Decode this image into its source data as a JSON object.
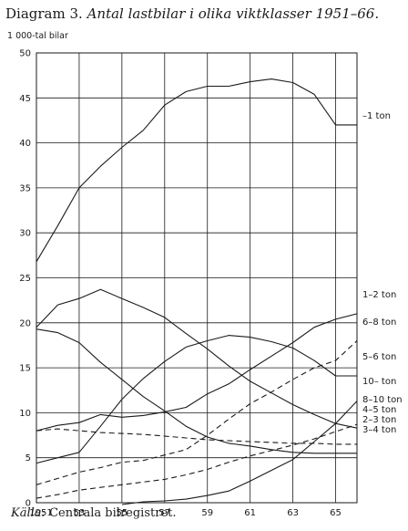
{
  "header": {
    "title_prefix": "Diagram 3.",
    "title_main": "Antal lastbilar i olika viktklasser 1951–66."
  },
  "footer": {
    "source_label": "Källa:",
    "source_text": "Centrala bilregistret."
  },
  "chart_data": {
    "type": "line",
    "title": "Diagram 3. Antal lastbilar i olika viktklasser 1951–66.",
    "ylabel": "1 000-tal bilar",
    "xlabel": "",
    "xlim": [
      1951,
      1966
    ],
    "ylim": [
      0,
      50
    ],
    "x_ticks": [
      1951,
      1953,
      1955,
      1957,
      1959,
      1961,
      1963,
      1965
    ],
    "x_tick_labels": [
      "1951",
      "53",
      "55",
      "57",
      "59",
      "61",
      "63",
      "65"
    ],
    "y_ticks": [
      0,
      5,
      10,
      15,
      20,
      25,
      30,
      35,
      40,
      45,
      50
    ],
    "grid": true,
    "x": [
      1951,
      1952,
      1953,
      1954,
      1955,
      1956,
      1957,
      1958,
      1959,
      1960,
      1961,
      1962,
      1963,
      1964,
      1965,
      1966
    ],
    "series": [
      {
        "name": "–1 ton",
        "style": "solid",
        "values": [
          26.8,
          30.8,
          35.0,
          37.4,
          39.5,
          41.4,
          44.2,
          45.7,
          46.3,
          46.3,
          46.8,
          47.1,
          46.7,
          45.4,
          42.0,
          42.0
        ]
      },
      {
        "name": "1–2 ton",
        "style": "solid",
        "values": [
          4.4,
          5.0,
          5.6,
          8.5,
          11.5,
          13.8,
          15.7,
          17.3,
          18.0,
          18.6,
          18.4,
          17.9,
          17.2,
          15.8,
          14.1,
          14.1
        ]
      },
      {
        "name": "6–8 ton",
        "style": "dashed",
        "values": [
          2.0,
          2.7,
          3.4,
          3.9,
          4.5,
          4.7,
          5.3,
          5.9,
          7.5,
          9.3,
          11.0,
          12.3,
          13.7,
          15.0,
          15.8,
          18.0
        ]
      },
      {
        "name": "5–6 ton",
        "style": "solid",
        "values": [
          19.5,
          22.0,
          22.7,
          23.7,
          22.7,
          21.7,
          20.6,
          18.8,
          17.1,
          15.2,
          13.5,
          12.2,
          10.9,
          9.8,
          8.8,
          8.3
        ]
      },
      {
        "name": "10– ton",
        "style": "solid",
        "values": [
          null,
          null,
          null,
          null,
          -0.2,
          0.1,
          0.2,
          0.4,
          0.8,
          1.3,
          2.4,
          3.6,
          4.8,
          6.8,
          8.8,
          11.3
        ]
      },
      {
        "name": "8–10 ton",
        "style": "solid",
        "values": [
          8.0,
          8.6,
          8.9,
          9.8,
          9.5,
          9.7,
          10.1,
          10.6,
          12.1,
          13.2,
          14.8,
          16.3,
          17.8,
          19.5,
          20.4,
          21.0
        ]
      },
      {
        "name": "4–5 ton",
        "style": "dashed",
        "values": [
          0.5,
          0.9,
          1.4,
          1.7,
          2.0,
          2.3,
          2.6,
          3.1,
          3.7,
          4.5,
          5.2,
          5.8,
          6.4,
          7.1,
          7.9,
          8.7
        ]
      },
      {
        "name": "2–3 ton",
        "style": "dashed",
        "values": [
          8.0,
          8.2,
          8.0,
          7.8,
          7.7,
          7.6,
          7.4,
          7.2,
          7.0,
          6.9,
          6.8,
          6.7,
          6.6,
          6.6,
          6.5,
          6.5
        ]
      },
      {
        "name": "3–4 ton",
        "style": "solid",
        "values": [
          19.3,
          18.9,
          17.8,
          15.6,
          13.7,
          11.8,
          10.2,
          8.5,
          7.3,
          6.6,
          6.3,
          5.9,
          5.6,
          5.5,
          5.5,
          5.5
        ]
      }
    ]
  }
}
